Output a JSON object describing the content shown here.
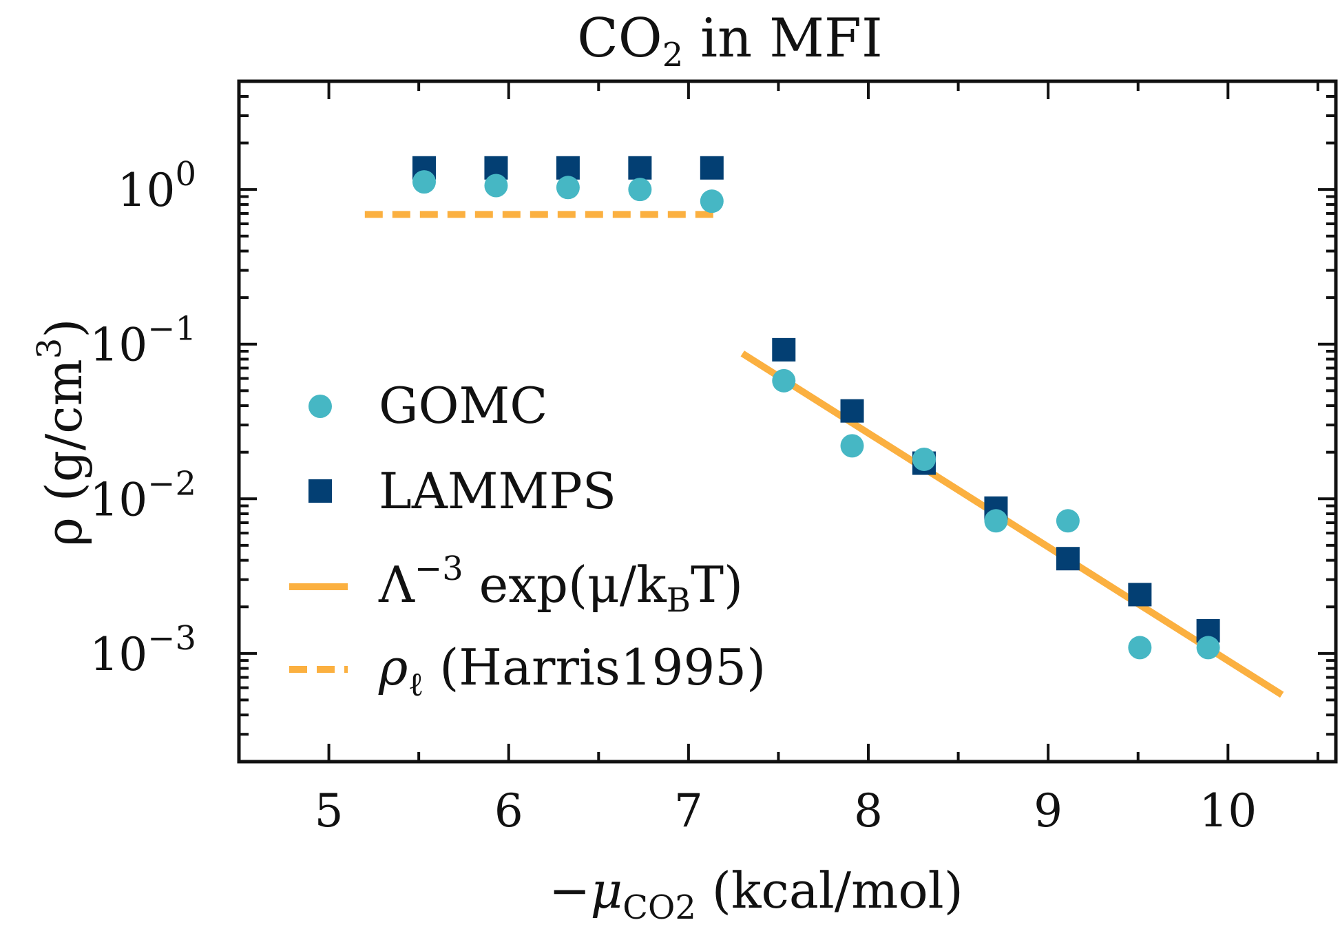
{
  "chart_data": {
    "type": "scatter",
    "title": {
      "pre": "CO",
      "sub": "2",
      "post": " in MFI"
    },
    "xlabel": {
      "pre": "−μ",
      "sub": "CO2",
      "post": " (kcal/mol)"
    },
    "ylabel": {
      "pre": "ρ (g/cm",
      "sup": "3",
      "post": ")"
    },
    "xlim": [
      4.5,
      10.6
    ],
    "ylim_log10": [
      -3.7,
      0.7
    ],
    "yscale": "log",
    "x_ticks": [
      {
        "v": 5,
        "label": "5"
      },
      {
        "v": 6,
        "label": "6"
      },
      {
        "v": 7,
        "label": "7"
      },
      {
        "v": 8,
        "label": "8"
      },
      {
        "v": 9,
        "label": "9"
      },
      {
        "v": 10,
        "label": "10"
      }
    ],
    "y_ticks": [
      {
        "exp": 0,
        "base": "10",
        "sup": "0"
      },
      {
        "exp": -1,
        "base": "10",
        "sup": "−1"
      },
      {
        "exp": -2,
        "base": "10",
        "sup": "−2"
      },
      {
        "exp": -3,
        "base": "10",
        "sup": "−3"
      }
    ],
    "grid": false,
    "legend_position": "center-left",
    "series": [
      {
        "name": "GOMC",
        "marker": "circle",
        "color": "#46b7c4",
        "points": [
          {
            "x": 5.53,
            "y": 1.12
          },
          {
            "x": 5.93,
            "y": 1.06
          },
          {
            "x": 6.33,
            "y": 1.03
          },
          {
            "x": 6.73,
            "y": 1.0
          },
          {
            "x": 7.13,
            "y": 0.84
          },
          {
            "x": 7.53,
            "y": 0.058
          },
          {
            "x": 7.91,
            "y": 0.022
          },
          {
            "x": 8.31,
            "y": 0.018
          },
          {
            "x": 8.71,
            "y": 0.0072
          },
          {
            "x": 9.11,
            "y": 0.0072
          },
          {
            "x": 9.51,
            "y": 0.00109
          },
          {
            "x": 9.89,
            "y": 0.00109
          }
        ]
      },
      {
        "name": "LAMMPS",
        "marker": "square",
        "color": "#033f73",
        "points": [
          {
            "x": 5.53,
            "y": 1.38
          },
          {
            "x": 5.93,
            "y": 1.38
          },
          {
            "x": 6.33,
            "y": 1.38
          },
          {
            "x": 6.73,
            "y": 1.38
          },
          {
            "x": 7.13,
            "y": 1.38
          },
          {
            "x": 7.53,
            "y": 0.092
          },
          {
            "x": 7.91,
            "y": 0.037
          },
          {
            "x": 8.31,
            "y": 0.017
          },
          {
            "x": 8.71,
            "y": 0.0087
          },
          {
            "x": 9.11,
            "y": 0.0041
          },
          {
            "x": 9.51,
            "y": 0.0024
          },
          {
            "x": 9.89,
            "y": 0.0014
          }
        ]
      },
      {
        "name_parts": {
          "pre": "Λ",
          "sup": "−3",
          "mid": " exp(μ/k",
          "sub": "B",
          "post": "T)"
        },
        "marker": "line",
        "linestyle": "solid",
        "color": "#fbb040",
        "points": [
          {
            "x": 7.3,
            "y": 0.087
          },
          {
            "x": 10.3,
            "y": 0.00054
          }
        ]
      },
      {
        "name_parts": {
          "pre": "ρ",
          "sub": "ℓ",
          "post": " (Harris1995)"
        },
        "marker": "line",
        "linestyle": "dashed",
        "color": "#fbb040",
        "points": [
          {
            "x": 5.2,
            "y": 0.69
          },
          {
            "x": 7.17,
            "y": 0.69
          }
        ]
      }
    ]
  }
}
